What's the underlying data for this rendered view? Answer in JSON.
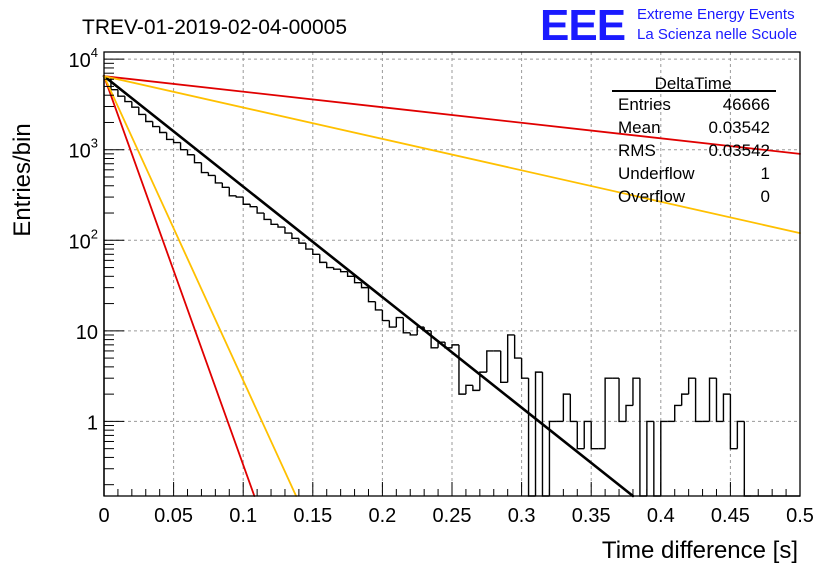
{
  "header": {
    "run_title": "TREV-01-2019-02-04-00005",
    "logo_mark": "EEE",
    "logo_line1": "Extreme Energy Events",
    "logo_line2": "La Scienza nelle Scuole"
  },
  "stats_box": {
    "name": "DeltaTime",
    "rows": [
      {
        "label": "Entries",
        "value": "46666"
      },
      {
        "label": "Mean",
        "value": "0.03542"
      },
      {
        "label": "RMS",
        "value": "0.03542"
      },
      {
        "label": "Underflow",
        "value": "1"
      },
      {
        "label": "Overflow",
        "value": "0"
      }
    ]
  },
  "colors": {
    "histogram": "#000000",
    "fit": "#000000",
    "red_curves": "#e00000",
    "orange_curves": "#ffc000",
    "grid": "#9a9a9a"
  },
  "chart_data": {
    "type": "line",
    "title": "TREV-01-2019-02-04-00005",
    "xlabel": "Time difference [s]",
    "ylabel": "Entries/bin",
    "xlim": [
      0,
      0.5
    ],
    "ylim": [
      0.15,
      12000
    ],
    "y_scale": "log",
    "grid": true,
    "x_ticks": [
      0,
      0.05,
      0.1,
      0.15,
      0.2,
      0.25,
      0.3,
      0.35,
      0.4,
      0.45,
      0.5
    ],
    "x_tick_labels": [
      "0",
      "0.05",
      "0.1",
      "0.15",
      "0.2",
      "0.25",
      "0.3",
      "0.35",
      "0.4",
      "0.45",
      "0.5"
    ],
    "y_ticks": [
      1,
      10,
      100,
      1000,
      10000
    ],
    "y_tick_labels": [
      {
        "base": "1",
        "exp": ""
      },
      {
        "base": "10",
        "exp": ""
      },
      {
        "base": "10",
        "exp": "2"
      },
      {
        "base": "10",
        "exp": "3"
      },
      {
        "base": "10",
        "exp": "4"
      }
    ],
    "histogram": {
      "name": "DeltaTime",
      "bin_width": 0.005,
      "values": [
        6300,
        4600,
        3900,
        3400,
        2950,
        2450,
        2050,
        1800,
        1550,
        1300,
        1200,
        1000,
        880,
        720,
        560,
        520,
        430,
        385,
        310,
        300,
        250,
        235,
        200,
        170,
        150,
        140,
        120,
        105,
        93,
        80,
        70,
        57,
        50,
        48,
        45,
        40,
        34,
        30,
        21,
        17,
        13,
        11,
        14,
        9.5,
        9,
        11,
        10,
        6.5,
        7.5,
        6.5,
        7,
        2,
        2.5,
        2.2,
        3.5,
        6,
        6,
        2.7,
        9,
        5,
        3,
        0.1,
        3.5,
        0.1,
        1,
        1,
        2,
        1,
        0.5,
        1,
        0.5,
        0.5,
        3,
        3,
        1,
        1.5,
        3,
        0.1,
        1,
        0.1,
        1,
        1,
        1.5,
        2,
        3,
        1,
        1,
        3,
        1,
        2,
        0.5,
        1,
        0.1,
        0.1,
        0.1,
        0.1,
        0.1,
        0.1,
        0.1,
        0.1
      ]
    },
    "series": [
      {
        "color": "#000000",
        "style": "fit",
        "x": [
          0,
          0.38
        ],
        "y": [
          6500,
          0.15
        ]
      },
      {
        "color": "#e00000",
        "x": [
          0,
          0.5
        ],
        "y": [
          6500,
          900
        ]
      },
      {
        "color": "#ffc000",
        "x": [
          0,
          0.5
        ],
        "y": [
          6500,
          120
        ]
      },
      {
        "color": "#e00000",
        "x": [
          0,
          0.108
        ],
        "y": [
          6500,
          0.15
        ]
      },
      {
        "color": "#ffc000",
        "x": [
          0,
          0.138
        ],
        "y": [
          6500,
          0.15
        ]
      }
    ]
  }
}
